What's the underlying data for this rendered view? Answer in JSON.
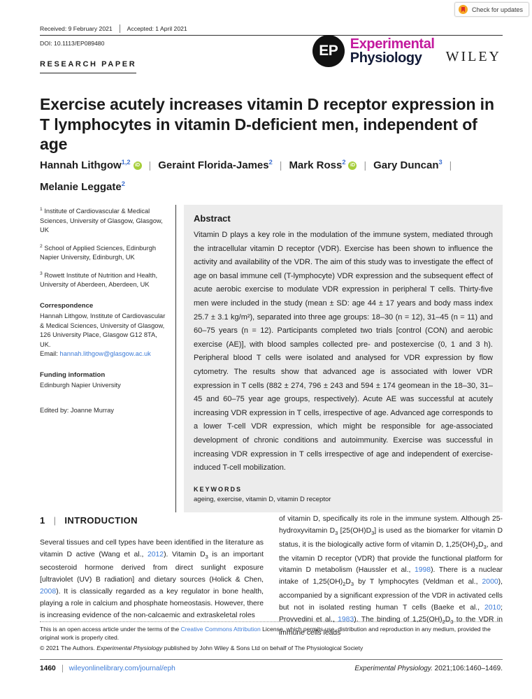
{
  "colors": {
    "brand_magenta": "#c31a9e",
    "brand_navy": "#131b38",
    "link_blue": "#3d7bd7",
    "orcid_green": "#a6ce39",
    "abstract_bg": "#ececec"
  },
  "badge": {
    "label": "Check for updates"
  },
  "header": {
    "received": "Received: 9 February 2021",
    "accepted": "Accepted: 1 April 2021",
    "doi": "DOI: 10.1113/EP089480",
    "article_type": "RESEARCH PAPER",
    "journal": {
      "monogram": "EP",
      "name_top": "Experimental",
      "name_bottom": "Physiology",
      "publisher": "WILEY"
    }
  },
  "title": "Exercise acutely increases vitamin D receptor expression in T lymphocytes in vitamin D-deficient men, independent of age",
  "authors": {
    "segments": [
      {
        "t": "Hannah Lithgow"
      },
      {
        "t": "1,2",
        "c": "supb"
      },
      {
        "t": "iD",
        "c": "orcid"
      },
      {
        "t": "|",
        "c": "sep"
      },
      {
        "t": "Geraint Florida-James"
      },
      {
        "t": "2",
        "c": "supb"
      },
      {
        "t": "|",
        "c": "sep"
      },
      {
        "t": "Mark Ross"
      },
      {
        "t": "2",
        "c": "supb"
      },
      {
        "t": "iD",
        "c": "orcid"
      },
      {
        "t": "|",
        "c": "sep"
      },
      {
        "t": "Gary Duncan"
      },
      {
        "t": "3",
        "c": "supb"
      },
      {
        "t": "|",
        "c": "sep"
      },
      {
        "br": true
      },
      {
        "t": "Melanie Leggate"
      },
      {
        "t": "2",
        "c": "supb"
      }
    ]
  },
  "sidebar": {
    "affiliations": [
      {
        "sup": "1",
        "text": "Institute of Cardiovascular & Medical Sciences, University of Glasgow, Glasgow, UK"
      },
      {
        "sup": "2",
        "text": "School of Applied Sciences, Edinburgh Napier University, Edinburgh, UK"
      },
      {
        "sup": "3",
        "text": "Rowett Institute of Nutrition and Health, University of Aberdeen, Aberdeen, UK"
      }
    ],
    "correspondence": {
      "heading": "Correspondence",
      "text": "Hannah Lithgow, Institute of Cardiovascular & Medical Sciences, University of Glasgow, 126 University Place, Glasgow G12 8TA, UK.",
      "email_segments": [
        {
          "t": "Email: "
        },
        {
          "t": "hannah.lithgow@glasgow.ac.uk",
          "c": "link"
        }
      ]
    },
    "funding": {
      "heading": "Funding information",
      "text": "Edinburgh Napier University"
    },
    "edited_by": "Edited by: Joanne Murray"
  },
  "abstract": {
    "heading": "Abstract",
    "body": "Vitamin D plays a key role in the modulation of the immune system, mediated through the intracellular vitamin D receptor (VDR). Exercise has been shown to influence the activity and availability of the VDR. The aim of this study was to investigate the effect of age on basal immune cell (T-lymphocyte) VDR expression and the subsequent effect of acute aerobic exercise to modulate VDR expression in peripheral T cells. Thirty-five men were included in the study (mean ± SD: age 44 ± 17 years and body mass index 25.7 ± 3.1 kg/m²), separated into three age groups: 18–30 (n = 12), 31–45 (n = 11) and 60–75 years (n = 12). Participants completed two trials [control (CON) and aerobic exercise (AE)], with blood samples collected pre- and postexercise (0, 1 and 3 h). Peripheral blood T cells were isolated and analysed for VDR expression by flow cytometry. The results show that advanced age is associated with lower VDR expression in T cells (882 ± 274, 796 ± 243 and 594 ± 174 geomean in the 18–30, 31–45 and 60–75 year age groups, respectively). Acute AE was successful at acutely increasing VDR expression in T cells, irrespective of age. Advanced age corresponds to a lower T-cell VDR expression, which might be responsible for age-associated development of chronic conditions and autoimmunity. Exercise was successful in increasing VDR expression in T cells irrespective of age and independent of exercise-induced T-cell mobilization.",
    "keywords_heading": "KEYWORDS",
    "keywords": "ageing, exercise, vitamin D, vitamin D receptor"
  },
  "introduction": {
    "number": "1",
    "pipe": "|",
    "heading": "INTRODUCTION",
    "col_left_segments": [
      {
        "t": "Several tissues and cell types have been identified in the literature as vitamin D active (Wang et al., "
      },
      {
        "t": "2012",
        "c": "link"
      },
      {
        "t": "). Vitamin D"
      },
      {
        "t": "3",
        "c": "sub"
      },
      {
        "t": " is an important secosteroid hormone derived from direct sunlight exposure [ultraviolet (UV) B radiation] and dietary sources (Holick & Chen, "
      },
      {
        "t": "2008",
        "c": "link"
      },
      {
        "t": "). It is classically regarded as a key regulator in bone health, playing a role in calcium and phosphate homeostasis. However, there is increasing evidence of the non-calcaemic and extraskeletal roles"
      }
    ],
    "col_right_segments": [
      {
        "t": "of vitamin D, specifically its role in the immune system. Although 25-hydroxyvitamin D"
      },
      {
        "t": "3",
        "c": "sub"
      },
      {
        "t": " [25(OH)D"
      },
      {
        "t": "3",
        "c": "sub"
      },
      {
        "t": "] is used as the biomarker for vitamin D status, it is the biologically active form of vitamin D, 1,25(OH)"
      },
      {
        "t": "2",
        "c": "sub"
      },
      {
        "t": "D"
      },
      {
        "t": "3",
        "c": "sub"
      },
      {
        "t": ", and the vitamin D receptor (VDR) that provide the functional platform for vitamin D metabolism (Haussler et al., "
      },
      {
        "t": "1998",
        "c": "link"
      },
      {
        "t": "). There is a nuclear intake of 1,25(OH)"
      },
      {
        "t": "2",
        "c": "sub"
      },
      {
        "t": "D"
      },
      {
        "t": "3",
        "c": "sub"
      },
      {
        "t": " by T lymphocytes (Veldman et al., "
      },
      {
        "t": "2000",
        "c": "link"
      },
      {
        "t": "), accompanied by a significant expression of the VDR in activated cells but not in isolated resting human T cells (Baeke et al., "
      },
      {
        "t": "2010",
        "c": "link"
      },
      {
        "t": "; Provvedini et al., "
      },
      {
        "t": "1983",
        "c": "link"
      },
      {
        "t": "). The binding of 1,25(OH)"
      },
      {
        "t": "2",
        "c": "sub"
      },
      {
        "t": "D"
      },
      {
        "t": "3",
        "c": "sub"
      },
      {
        "t": " to the VDR in immune cells leads"
      }
    ]
  },
  "footnote": {
    "line1_segments": [
      {
        "t": "This is an open access article under the terms of the "
      },
      {
        "t": "Creative Commons Attribution",
        "c": "link"
      },
      {
        "t": " License, which permits use, distribution and reproduction in any medium, provided the original work is properly cited."
      }
    ],
    "line2_segments": [
      {
        "t": "© 2021 The Authors. "
      },
      {
        "t": "Experimental Physiology",
        "c": "i"
      },
      {
        "t": " published by John Wiley & Sons Ltd on behalf of The Physiological Society"
      }
    ]
  },
  "footer": {
    "page": "1460",
    "url": "wileyonlinelibrary.com/journal/eph",
    "right_segments": [
      {
        "t": "Experimental Physiology.",
        "c": "i"
      },
      {
        "t": " 2021;106:1460–1469."
      }
    ]
  }
}
